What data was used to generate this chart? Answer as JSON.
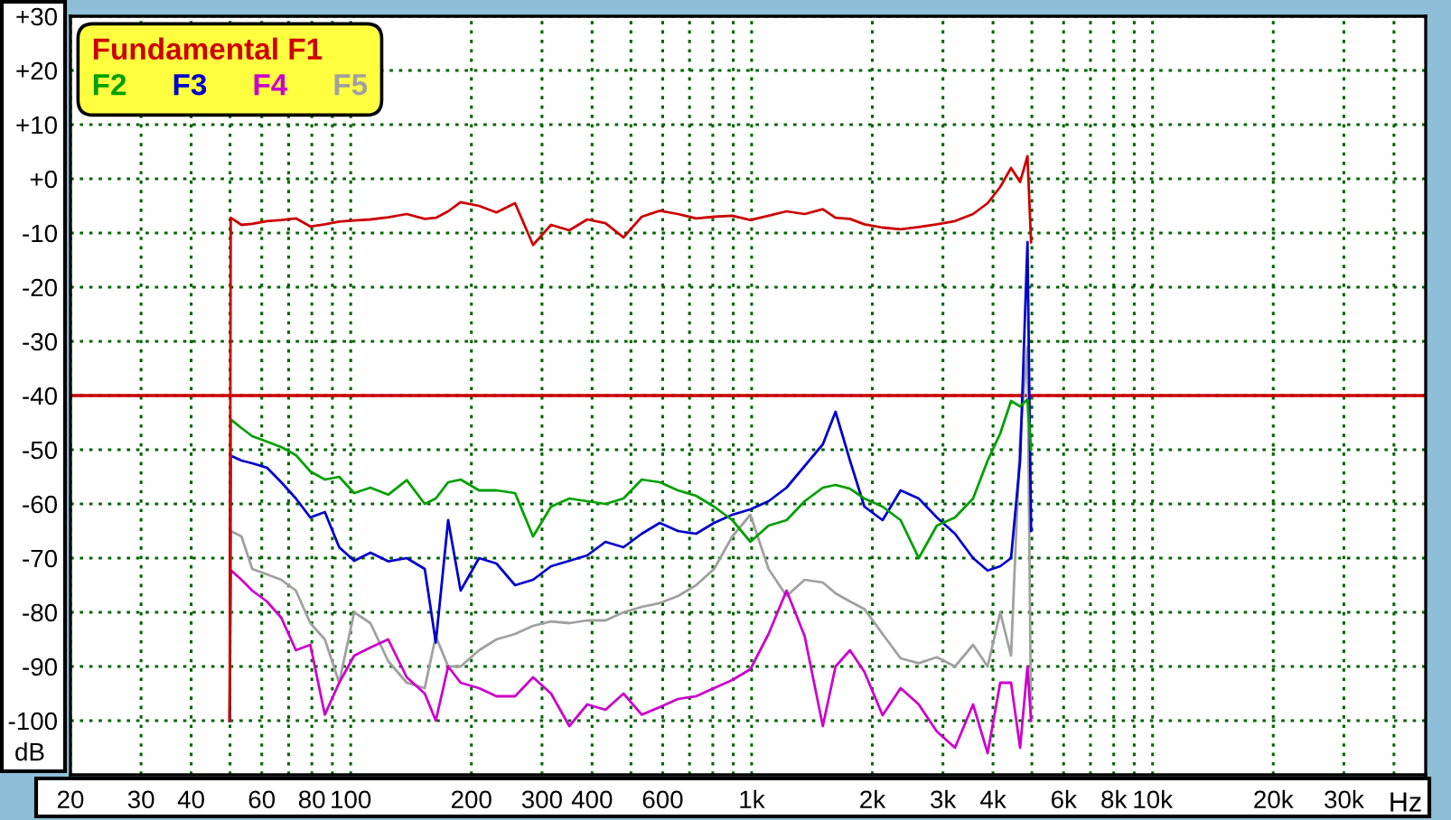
{
  "chart_data": {
    "type": "line",
    "xlabel": "Hz",
    "ylabel": "dB",
    "log": "x",
    "grid": true,
    "legend": "top left",
    "marker": "none",
    "line_style": "solid",
    "xlim": [
      20,
      48000
    ],
    "ylim": [
      -110,
      30
    ],
    "xticks": [
      20,
      30,
      40,
      {
        "value": 50,
        "label": null
      },
      60,
      {
        "value": 70,
        "label": null
      },
      80,
      {
        "value": 90,
        "label": null
      },
      100,
      200,
      300,
      400,
      {
        "value": 500,
        "label": null
      },
      600,
      {
        "value": 700,
        "label": null
      },
      {
        "value": 800,
        "label": null
      },
      {
        "value": 900,
        "label": null
      },
      {
        "value": 1000,
        "label": "1k"
      },
      {
        "value": 2000,
        "label": "2k"
      },
      {
        "value": 3000,
        "label": "3k"
      },
      {
        "value": 4000,
        "label": "4k"
      },
      {
        "value": 5000,
        "label": null
      },
      {
        "value": 6000,
        "label": "6k"
      },
      {
        "value": 7000,
        "label": null
      },
      {
        "value": 8000,
        "label": "8k"
      },
      {
        "value": 9000,
        "label": null
      },
      {
        "value": 10000,
        "label": "10k"
      },
      {
        "value": 20000,
        "label": "20k"
      },
      {
        "value": 30000,
        "label": "30k"
      },
      {
        "value": 40000,
        "label": null
      }
    ],
    "yticks": [
      {
        "value": 30,
        "label": "+30"
      },
      {
        "value": 20,
        "label": "+20"
      },
      {
        "value": 10,
        "label": "+10"
      },
      {
        "value": 0,
        "label": "+0"
      },
      -10,
      -20,
      -30,
      -40,
      -50,
      -60,
      -70,
      -80,
      -90,
      -100
    ],
    "ref_lines": [
      {
        "axis": "y",
        "value": -40,
        "color": "#cc0000",
        "line_style": "solid"
      }
    ],
    "x": [
      49.9,
      50.2,
      53.4,
      56.8,
      61.8,
      67.1,
      73.0,
      79.3,
      86.2,
      93.6,
      102,
      112,
      124,
      138,
      153,
      163,
      175,
      188,
      209,
      231,
      257,
      285,
      316,
      351,
      389,
      432,
      479,
      532,
      590,
      655,
      727,
      806,
      895,
      993,
      1102,
      1222,
      1356,
      1505,
      1619,
      1759,
      1911,
      2121,
      2353,
      2611,
      2897,
      3215,
      3567,
      3878,
      4169,
      4436,
      4673,
      4875,
      4977
    ],
    "series": [
      {
        "name": "Fundamental F1",
        "color": "#cc0000",
        "values": [
          -100,
          -7.2,
          -8.5,
          -8.3,
          -7.8,
          -7.6,
          -7.3,
          -8.8,
          -8.4,
          -7.9,
          -7.7,
          -7.5,
          -7.1,
          -6.5,
          -7.4,
          -7.2,
          -6.0,
          -4.3,
          -5.0,
          -6.2,
          -4.5,
          -12.2,
          -8.5,
          -9.5,
          -7.5,
          -8.2,
          -10.8,
          -7.0,
          -5.9,
          -6.5,
          -7.3,
          -7.0,
          -6.8,
          -7.6,
          -6.8,
          -6.0,
          -6.5,
          -5.6,
          -7.2,
          -7.4,
          -8.4,
          -9.0,
          -9.3,
          -8.9,
          -8.4,
          -7.8,
          -6.5,
          -4.5,
          -1.5,
          2.0,
          -0.6,
          4.2,
          -11.7
        ]
      },
      {
        "name": "F2",
        "color": "#00a000",
        "values": [
          -100,
          -44.4,
          -46,
          -47.5,
          -48.5,
          -49.5,
          -51,
          -54,
          -55.5,
          -55,
          -58,
          -57,
          -58.3,
          -55.6,
          -60,
          -59,
          -56,
          -55.5,
          -57.5,
          -57.5,
          -58,
          -66,
          -60.5,
          -59,
          -59.5,
          -60,
          -59,
          -55.5,
          -56,
          -57.5,
          -58.5,
          -60.5,
          -63,
          -67,
          -64,
          -63,
          -59.5,
          -57,
          -56.5,
          -57.2,
          -59,
          -60.5,
          -63,
          -70,
          -64,
          -62.5,
          -59,
          -52,
          -47,
          -41,
          -42,
          -40.7,
          -50
        ]
      },
      {
        "name": "F3",
        "color": "#0000cc",
        "values": [
          -100,
          -51.1,
          -52,
          -52.5,
          -53.3,
          -56,
          -59,
          -62.5,
          -61.5,
          -68,
          -70.5,
          -69,
          -70.6,
          -70,
          -72,
          -85.6,
          -63,
          -76,
          -70,
          -71,
          -75,
          -74,
          -71.5,
          -70.5,
          -69.5,
          -67,
          -68,
          -65.5,
          -63.5,
          -65,
          -65.5,
          -63.5,
          -62,
          -61,
          -59.5,
          -57,
          -53,
          -49,
          -43,
          -52,
          -60.5,
          -63,
          -57.5,
          -59,
          -62.5,
          -65.5,
          -70,
          -72.3,
          -71.5,
          -70,
          -52,
          -11.7,
          -65
        ]
      },
      {
        "name": "F4",
        "color": "#cc00cc",
        "values": [
          -100,
          -72.2,
          -74,
          -76,
          -78,
          -81,
          -87,
          -86,
          -98.9,
          -93,
          -88,
          -86.5,
          -85,
          -92,
          -95,
          -100,
          -90,
          -93,
          -94,
          -95.5,
          -95.5,
          -92,
          -95,
          -101,
          -97,
          -98,
          -95,
          -98.9,
          -97.5,
          -96,
          -95.5,
          -94,
          -92.5,
          -90.5,
          -84,
          -76,
          -84.4,
          -101,
          -90,
          -87,
          -91,
          -99,
          -94,
          -97,
          -102,
          -105,
          -97,
          -106,
          -93,
          -93,
          -105,
          -90,
          -100
        ]
      },
      {
        "name": "F5",
        "color": "#a0a0a0",
        "values": [
          -100,
          -65,
          -66,
          -72,
          -73,
          -74,
          -76,
          -82,
          -85,
          -93,
          -80,
          -82,
          -89,
          -93,
          -94,
          -84.4,
          -90,
          -90,
          -87,
          -85,
          -84,
          -82.5,
          -81.7,
          -82,
          -81.5,
          -81.5,
          -80,
          -79,
          -78.3,
          -77,
          -75,
          -72,
          -66,
          -62,
          -72,
          -77,
          -74,
          -74.5,
          -76.5,
          -78,
          -79.4,
          -84,
          -88.5,
          -89.4,
          -88.3,
          -90,
          -86,
          -90,
          -80,
          -88,
          -48,
          -31,
          -100
        ]
      }
    ]
  }
}
